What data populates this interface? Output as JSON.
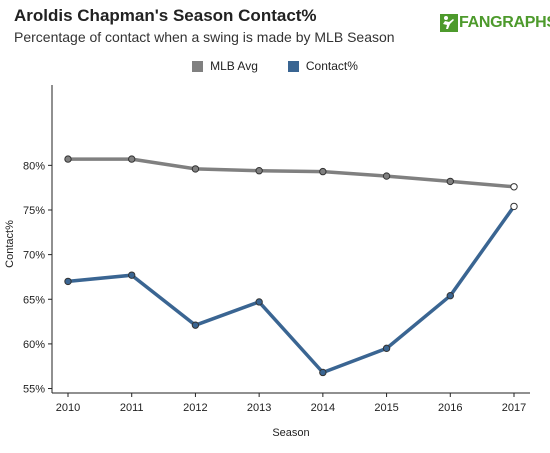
{
  "header": {
    "title": "Aroldis Chapman's Season Contact%",
    "subtitle": "Percentage of contact when a swing is made by MLB Season",
    "brand": "FANGRAPHS"
  },
  "colors": {
    "mlb_avg": "#808080",
    "contact": "#3a6592",
    "brand_green": "#4d9a2c",
    "axis": "#222222"
  },
  "chart_data": {
    "type": "line",
    "xlabel": "Season",
    "ylabel": "Contact%",
    "x": [
      2010,
      2011,
      2012,
      2013,
      2014,
      2015,
      2016,
      2017
    ],
    "ylim": [
      54.5,
      89
    ],
    "yticks": [
      55,
      60,
      65,
      70,
      75,
      80
    ],
    "ytick_labels": [
      "55%",
      "60%",
      "65%",
      "70%",
      "75%",
      "80%"
    ],
    "xtick_labels": [
      "2010",
      "2011",
      "2012",
      "2013",
      "2014",
      "2015",
      "2016",
      "2017"
    ],
    "legend_position": "top-center",
    "grid": false,
    "series": [
      {
        "name": "MLB Avg",
        "values": [
          80.7,
          80.7,
          79.6,
          79.4,
          79.3,
          78.8,
          78.2,
          77.6
        ]
      },
      {
        "name": "Contact%",
        "values": [
          67.0,
          67.7,
          62.1,
          64.7,
          56.8,
          59.5,
          65.4,
          75.4
        ]
      }
    ]
  }
}
